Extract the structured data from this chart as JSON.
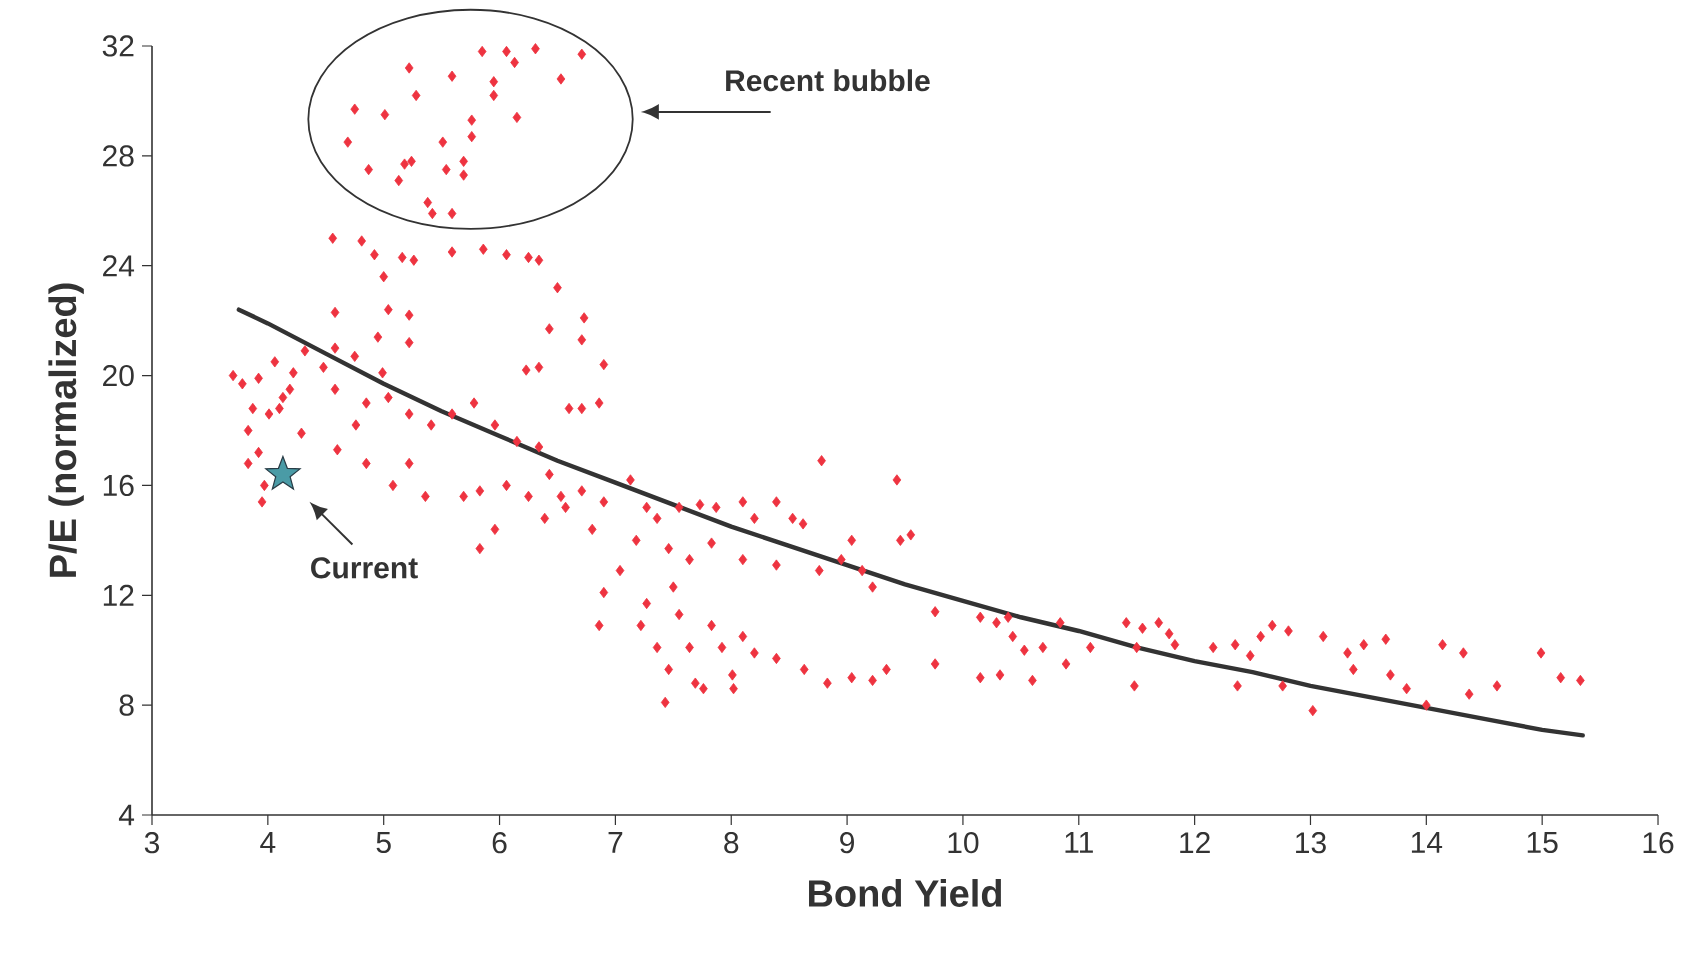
{
  "chart_data": {
    "type": "scatter",
    "xlabel": "Bond Yield",
    "ylabel": "P/E (normalized)",
    "xlim": [
      3,
      16
    ],
    "ylim": [
      4,
      32
    ],
    "xticks": [
      3,
      4,
      5,
      6,
      7,
      8,
      9,
      10,
      11,
      12,
      13,
      14,
      15,
      16
    ],
    "yticks": [
      4,
      8,
      12,
      16,
      20,
      24,
      28,
      32
    ],
    "annotations": [
      "Recent bubble",
      {
        "text": "Current",
        "x": 4.13,
        "y": 16.4
      }
    ],
    "series": [
      {
        "marker": "diamond",
        "color": "#ee3340",
        "x": [
          5.85,
          6.06,
          6.31,
          6.71,
          6.13,
          5.22,
          5.59,
          5.95,
          6.53,
          5.95,
          5.28,
          4.75,
          5.01,
          5.76,
          6.15,
          4.69,
          5.51,
          5.24,
          5.18,
          4.87,
          5.76,
          5.69,
          5.69,
          5.54,
          5.13,
          5.38,
          5.42,
          5.59,
          4.56,
          4.81,
          4.92,
          5.16,
          5.26,
          5.0,
          5.59,
          5.86,
          6.06,
          6.25,
          6.34,
          6.5,
          4.58,
          5.04,
          5.22,
          4.95,
          6.43,
          6.73,
          6.71,
          5.22,
          4.58,
          4.75,
          4.99,
          6.23,
          6.34,
          6.9,
          6.86,
          6.71,
          6.6,
          3.7,
          3.78,
          3.92,
          4.06,
          4.22,
          4.19,
          3.87,
          4.01,
          3.83,
          4.1,
          4.29,
          3.92,
          3.83,
          3.97,
          3.95,
          4.13,
          4.48,
          4.32,
          4.58,
          4.85,
          5.04,
          4.76,
          5.22,
          5.41,
          5.59,
          5.78,
          5.96,
          6.15,
          6.34,
          4.6,
          4.85,
          5.22,
          5.08,
          5.36,
          5.69,
          5.83,
          6.06,
          6.25,
          6.43,
          6.53,
          6.71,
          5.83,
          5.96,
          6.39,
          6.57,
          6.8,
          6.9,
          7.13,
          7.27,
          7.36,
          7.55,
          7.73,
          7.87,
          8.1,
          8.2,
          8.39,
          8.53,
          8.62,
          8.78,
          7.18,
          7.46,
          7.64,
          7.83,
          8.1,
          8.39,
          7.04,
          6.9,
          6.86,
          7.27,
          7.5,
          8.76,
          8.95,
          9.13,
          9.22,
          9.04,
          9.46,
          9.55,
          9.43,
          7.22,
          7.36,
          7.46,
          7.55,
          7.69,
          7.83,
          7.92,
          8.01,
          8.1,
          8.2,
          8.39,
          7.64,
          7.43,
          7.76,
          8.02,
          8.63,
          8.83,
          9.04,
          9.22,
          9.34,
          9.76,
          9.76,
          10.15,
          10.29,
          10.39,
          10.43,
          10.53,
          10.15,
          10.32,
          10.6,
          10.69,
          10.84,
          10.89,
          11.1,
          11.41,
          11.55,
          11.69,
          11.78,
          11.5,
          11.83,
          11.48,
          12.16,
          12.35,
          12.37,
          12.48,
          12.57,
          12.67,
          12.81,
          12.76,
          13.02,
          13.11,
          13.32,
          13.37,
          13.46,
          13.65,
          13.69,
          13.83,
          14.0,
          14.14,
          14.32,
          14.37,
          14.61,
          14.99,
          15.16,
          15.33
        ],
        "values": [
          31.8,
          31.8,
          31.9,
          31.7,
          31.4,
          31.2,
          30.9,
          30.7,
          30.8,
          30.2,
          30.2,
          29.7,
          29.5,
          29.3,
          29.4,
          28.5,
          28.5,
          27.8,
          27.7,
          27.5,
          28.7,
          27.8,
          27.3,
          27.5,
          27.1,
          26.3,
          25.9,
          25.9,
          25.0,
          24.9,
          24.4,
          24.3,
          24.2,
          23.6,
          24.5,
          24.6,
          24.4,
          24.3,
          24.2,
          23.2,
          22.3,
          22.4,
          22.2,
          21.4,
          21.7,
          22.1,
          21.3,
          21.2,
          21.0,
          20.7,
          20.1,
          20.2,
          20.3,
          20.4,
          19.0,
          18.8,
          18.8,
          20.0,
          19.7,
          19.9,
          20.5,
          20.1,
          19.5,
          18.8,
          18.6,
          18.0,
          18.8,
          17.9,
          17.2,
          16.8,
          16.0,
          15.4,
          19.2,
          20.3,
          20.9,
          19.5,
          19.0,
          19.2,
          18.2,
          18.6,
          18.2,
          18.6,
          19.0,
          18.2,
          17.6,
          17.4,
          17.3,
          16.8,
          16.8,
          16.0,
          15.6,
          15.6,
          15.8,
          16.0,
          15.6,
          16.4,
          15.6,
          15.8,
          13.7,
          14.4,
          14.8,
          15.2,
          14.4,
          15.4,
          16.2,
          15.2,
          14.8,
          15.2,
          15.3,
          15.2,
          15.4,
          14.8,
          15.4,
          14.8,
          14.6,
          16.9,
          14.0,
          13.7,
          13.3,
          13.9,
          13.3,
          13.1,
          12.9,
          12.1,
          10.9,
          11.7,
          12.3,
          12.9,
          13.3,
          12.9,
          12.3,
          14.0,
          14.0,
          14.2,
          16.2,
          10.9,
          10.1,
          9.3,
          11.3,
          8.8,
          10.9,
          10.1,
          9.1,
          10.5,
          9.9,
          9.7,
          10.1,
          8.1,
          8.6,
          8.6,
          9.3,
          8.8,
          9.0,
          8.9,
          9.3,
          11.4,
          9.5,
          11.2,
          11.0,
          11.2,
          10.5,
          10.0,
          9.0,
          9.1,
          8.9,
          10.1,
          11.0,
          9.5,
          10.1,
          11.0,
          10.8,
          11.0,
          10.6,
          10.1,
          10.2,
          8.7,
          10.1,
          10.2,
          8.7,
          9.8,
          10.5,
          10.9,
          10.7,
          8.7,
          7.8,
          10.5,
          9.9,
          9.3,
          10.2,
          10.4,
          9.1,
          8.6,
          8.0,
          10.2,
          9.9,
          8.4,
          8.7,
          9.9,
          9.0,
          8.9
        ]
      },
      {
        "type": "line",
        "marker": "none",
        "color": "#333333",
        "x": [
          3.75,
          4,
          4.5,
          5,
          5.5,
          6,
          6.5,
          7,
          7.5,
          8,
          8.5,
          9,
          9.5,
          10,
          10.5,
          11,
          11.5,
          12,
          12.5,
          13,
          13.5,
          14,
          14.5,
          15,
          15.35
        ],
        "values": [
          22.4,
          21.9,
          20.8,
          19.7,
          18.7,
          17.8,
          16.9,
          16.1,
          15.3,
          14.5,
          13.8,
          13.1,
          12.4,
          11.8,
          11.2,
          10.7,
          10.1,
          9.6,
          9.2,
          8.7,
          8.3,
          7.9,
          7.5,
          7.1,
          6.9
        ]
      },
      {
        "type": "scatter",
        "marker": "star",
        "color": "#4a9ba6",
        "x": [
          4.13
        ],
        "values": [
          16.4
        ]
      }
    ]
  }
}
